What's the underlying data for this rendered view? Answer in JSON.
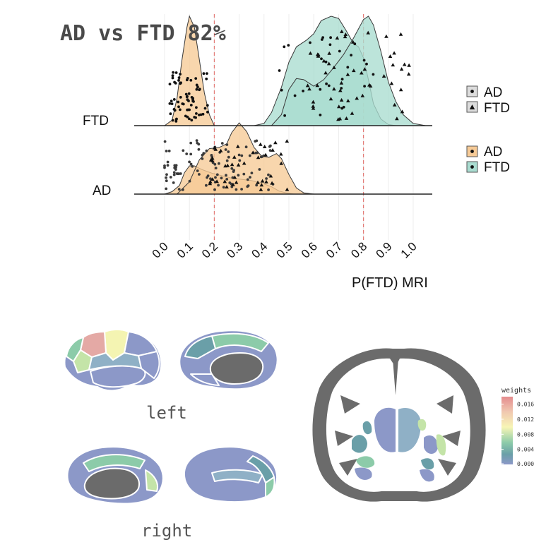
{
  "chart_data": [
    {
      "type": "ridgeline",
      "title": "AD vs FTD 82%",
      "xlabel": "P(FTD) MRI",
      "ylabel": "",
      "xlim": [
        0,
        1
      ],
      "x_ticks": [
        "0.0",
        "0.1",
        "0.2",
        "0.3",
        "0.4",
        "0.5",
        "0.6",
        "0.7",
        "0.8",
        "0.9",
        "1.0"
      ],
      "rows": [
        "FTD",
        "AD"
      ],
      "thresholds": [
        0.2,
        0.8
      ],
      "grid": true,
      "series": [
        {
          "row": "FTD",
          "group": "FTD",
          "color": "#a9dcd0",
          "marker": "circle",
          "density": [
            [
              0.36,
              0
            ],
            [
              0.4,
              0.02
            ],
            [
              0.43,
              0.12
            ],
            [
              0.47,
              0.35
            ],
            [
              0.5,
              0.58
            ],
            [
              0.53,
              0.72
            ],
            [
              0.57,
              0.78
            ],
            [
              0.6,
              0.84
            ],
            [
              0.63,
              0.96
            ],
            [
              0.67,
              1.0
            ],
            [
              0.7,
              0.98
            ],
            [
              0.73,
              0.87
            ],
            [
              0.76,
              0.75
            ],
            [
              0.78,
              0.72
            ],
            [
              0.8,
              0.62
            ],
            [
              0.82,
              0.42
            ],
            [
              0.84,
              0.2
            ],
            [
              0.87,
              0.06
            ],
            [
              0.9,
              0.01
            ],
            [
              0.93,
              0
            ]
          ]
        },
        {
          "row": "FTD",
          "group": "FTD",
          "color": "#a9dcd0",
          "marker": "triangle",
          "density": [
            [
              0.43,
              0
            ],
            [
              0.47,
              0.1
            ],
            [
              0.5,
              0.33
            ],
            [
              0.53,
              0.43
            ],
            [
              0.56,
              0.42
            ],
            [
              0.6,
              0.36
            ],
            [
              0.64,
              0.42
            ],
            [
              0.68,
              0.53
            ],
            [
              0.72,
              0.65
            ],
            [
              0.76,
              0.8
            ],
            [
              0.8,
              0.97
            ],
            [
              0.82,
              1.0
            ],
            [
              0.84,
              0.92
            ],
            [
              0.87,
              0.68
            ],
            [
              0.9,
              0.4
            ],
            [
              0.93,
              0.22
            ],
            [
              0.96,
              0.1
            ],
            [
              1.0,
              0.02
            ],
            [
              1.05,
              0
            ]
          ]
        },
        {
          "row": "AD",
          "group": "AD",
          "color": "#f6ca96",
          "marker": "circle",
          "density": [
            [
              0.0,
              0
            ],
            [
              0.03,
              0.04
            ],
            [
              0.06,
              0.14
            ],
            [
              0.08,
              0.35
            ],
            [
              0.1,
              0.46
            ],
            [
              0.12,
              0.46
            ],
            [
              0.15,
              0.4
            ],
            [
              0.19,
              0.34
            ],
            [
              0.23,
              0.3
            ],
            [
              0.27,
              0.26
            ],
            [
              0.31,
              0.24
            ],
            [
              0.35,
              0.22
            ],
            [
              0.39,
              0.18
            ],
            [
              0.43,
              0.12
            ],
            [
              0.46,
              0.05
            ],
            [
              0.49,
              0.02
            ],
            [
              0.52,
              0
            ]
          ]
        },
        {
          "row": "AD",
          "group": "AD",
          "color": "#f6ca96",
          "marker": "triangle",
          "density": [
            [
              0.05,
              0
            ],
            [
              0.1,
              0.2
            ],
            [
              0.14,
              0.56
            ],
            [
              0.18,
              0.74
            ],
            [
              0.22,
              0.76
            ],
            [
              0.25,
              0.82
            ],
            [
              0.27,
              1.0
            ],
            [
              0.3,
              1.16
            ],
            [
              0.33,
              1.02
            ],
            [
              0.36,
              0.76
            ],
            [
              0.39,
              0.62
            ],
            [
              0.42,
              0.6
            ],
            [
              0.45,
              0.66
            ],
            [
              0.47,
              0.58
            ],
            [
              0.5,
              0.32
            ],
            [
              0.53,
              0.1
            ],
            [
              0.56,
              0.02
            ],
            [
              0.6,
              0
            ]
          ]
        },
        {
          "row": "FTD",
          "group": "AD",
          "color": "#f6ca96",
          "marker": "circle",
          "density": [
            [
              0.0,
              0
            ],
            [
              0.03,
              0.05
            ],
            [
              0.05,
              0.25
            ],
            [
              0.07,
              0.6
            ],
            [
              0.09,
              0.9
            ],
            [
              0.1,
              1.0
            ],
            [
              0.12,
              0.9
            ],
            [
              0.14,
              0.6
            ],
            [
              0.16,
              0.3
            ],
            [
              0.18,
              0.1
            ],
            [
              0.2,
              0
            ]
          ]
        }
      ],
      "legend": [
        {
          "shape_legend": [
            "AD",
            "FTD"
          ]
        },
        {
          "fill_legend": [
            "AD",
            "FTD"
          ]
        }
      ]
    },
    {
      "type": "heatmap",
      "title": "",
      "colorbar": {
        "title": "weights",
        "ticks": [
          "0.016",
          "0.012",
          "0.008",
          "0.004",
          "0.000"
        ],
        "range": [
          0,
          0.018
        ],
        "colors": [
          "#e48c8e",
          "#f0c7b0",
          "#f7f5b5",
          "#8ccba9",
          "#6a9fa8",
          "#8c98c8"
        ]
      },
      "views": [
        "left",
        "right"
      ]
    }
  ]
}
